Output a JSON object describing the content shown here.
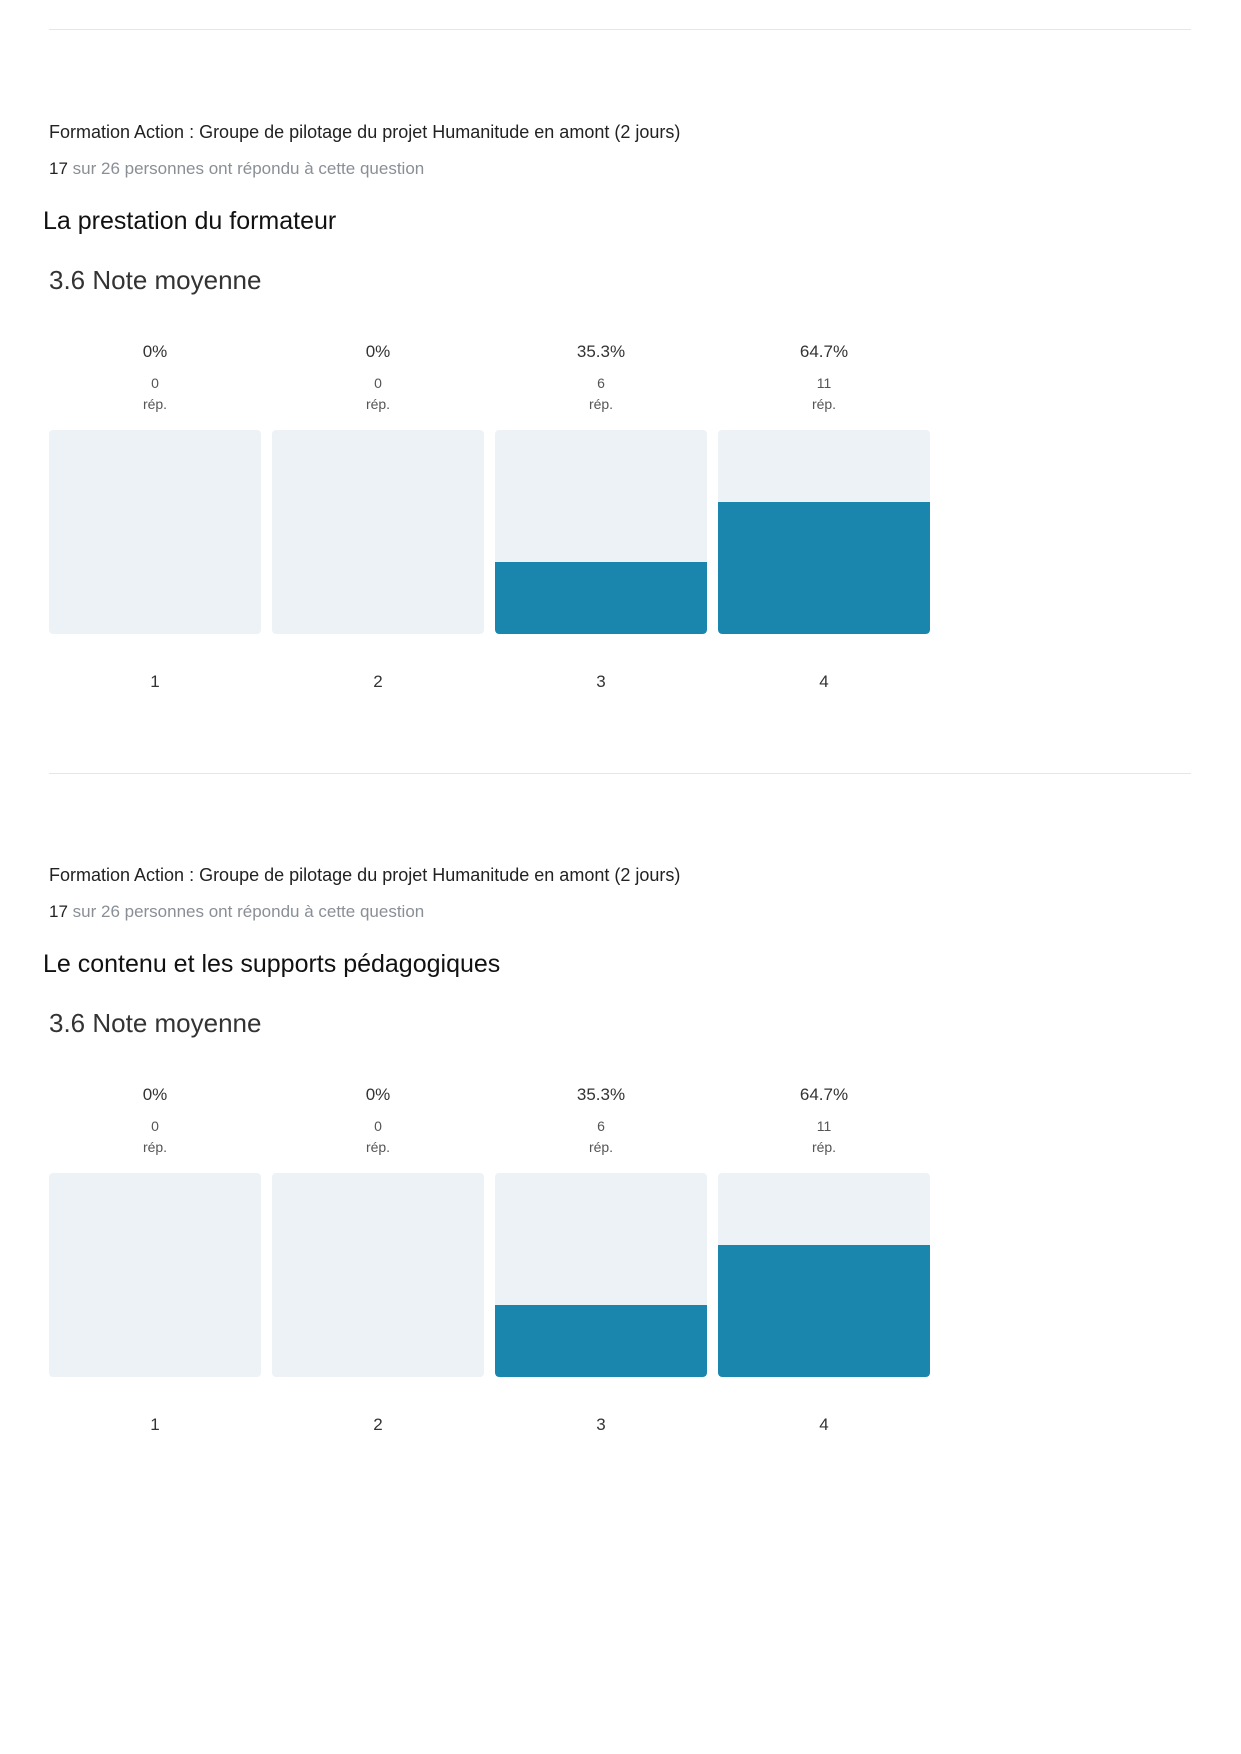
{
  "sections": [
    {
      "survey_title": "Formation Action : Groupe de pilotage du projet Humanitude en amont (2 jours)",
      "responded": "17",
      "responded_suffix": " sur 26 personnes ont répondu à cette question",
      "question": "La prestation du formateur",
      "average": "3.6 Note moyenne",
      "chart_data": {
        "type": "bar",
        "categories": [
          "1",
          "2",
          "3",
          "4"
        ],
        "percents": [
          "0%",
          "0%",
          "35.3%",
          "64.7%"
        ],
        "counts": [
          "0",
          "0",
          "6",
          "11"
        ],
        "count_unit": "rép.",
        "values": [
          0,
          0,
          35.3,
          64.7
        ],
        "ylim": [
          0,
          100
        ]
      }
    },
    {
      "survey_title": "Formation Action : Groupe de pilotage du projet Humanitude en amont (2 jours)",
      "responded": "17",
      "responded_suffix": " sur 26 personnes ont répondu à cette question",
      "question": "Le contenu et les supports pédagogiques",
      "average": "3.6 Note moyenne",
      "chart_data": {
        "type": "bar",
        "categories": [
          "1",
          "2",
          "3",
          "4"
        ],
        "percents": [
          "0%",
          "0%",
          "35.3%",
          "64.7%"
        ],
        "counts": [
          "0",
          "0",
          "6",
          "11"
        ],
        "count_unit": "rép.",
        "values": [
          0,
          0,
          35.3,
          64.7
        ],
        "ylim": [
          0,
          100
        ]
      }
    }
  ],
  "colors": {
    "bar_fill": "#1a85ad",
    "bar_track": "#edf2f7"
  }
}
